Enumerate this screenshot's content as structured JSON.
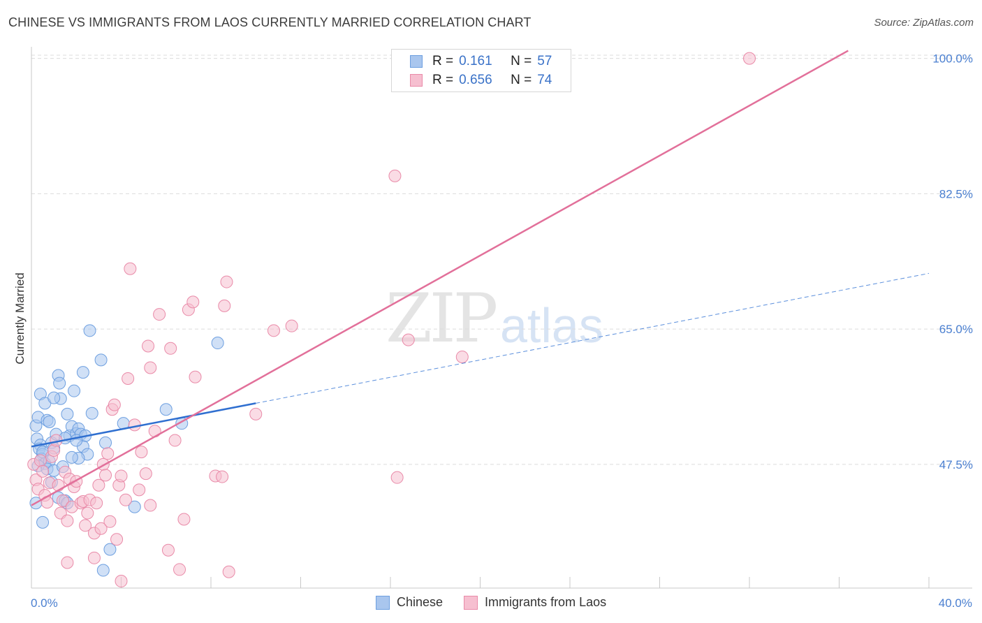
{
  "title": "CHINESE VS IMMIGRANTS FROM LAOS CURRENTLY MARRIED CORRELATION CHART",
  "source": "Source: ZipAtlas.com",
  "watermark": {
    "zip": "ZIP",
    "atlas": "atlas"
  },
  "legend": {
    "rows": [
      {
        "r_label": "R =",
        "r_value": "0.161",
        "n_label": "N =",
        "n_value": "57",
        "color": "#a9c6ee",
        "border": "#6d9fe0"
      },
      {
        "r_label": "R =",
        "r_value": "0.656",
        "n_label": "N =",
        "n_value": "74",
        "color": "#f6bfd0",
        "border": "#e98aa8"
      }
    ]
  },
  "bottom_legend": [
    {
      "label": "Chinese",
      "color": "#a9c6ee",
      "border": "#6d9fe0"
    },
    {
      "label": "Immigrants from Laos",
      "color": "#f6bfd0",
      "border": "#e98aa8"
    }
  ],
  "chart_data": {
    "type": "scatter",
    "title": "CHINESE VS IMMIGRANTS FROM LAOS CURRENTLY MARRIED CORRELATION CHART",
    "xlabel": "",
    "ylabel": "Currently Married",
    "xlim": [
      0,
      40
    ],
    "ylim": [
      31.5,
      101.5
    ],
    "x_tick_labels": [
      {
        "value": 0,
        "label": "0.0%"
      },
      {
        "value": 40,
        "label": "40.0%"
      }
    ],
    "y_tick_labels": [
      {
        "value": 47.5,
        "label": "47.5%"
      },
      {
        "value": 65.0,
        "label": "65.0%"
      },
      {
        "value": 82.5,
        "label": "82.5%"
      },
      {
        "value": 100.0,
        "label": "100.0%"
      }
    ],
    "x_minor_ticks": [
      0,
      4,
      8,
      12,
      16,
      20,
      24,
      28,
      32,
      36,
      40
    ],
    "series": [
      {
        "name": "Chinese",
        "color": "#a9c6ee",
        "stroke": "#6d9fe0",
        "points": [
          [
            0.2,
            52.5
          ],
          [
            0.3,
            53.6
          ],
          [
            0.25,
            50.8
          ],
          [
            0.4,
            50.0
          ],
          [
            0.35,
            49.5
          ],
          [
            0.5,
            48.8
          ],
          [
            0.45,
            48.2
          ],
          [
            0.6,
            47.6
          ],
          [
            0.3,
            47.3
          ],
          [
            0.5,
            49.1
          ],
          [
            0.4,
            56.6
          ],
          [
            0.6,
            55.4
          ],
          [
            0.7,
            53.2
          ],
          [
            0.8,
            53.0
          ],
          [
            0.9,
            50.3
          ],
          [
            1.0,
            49.6
          ],
          [
            0.8,
            47.9
          ],
          [
            0.7,
            46.9
          ],
          [
            1.0,
            46.7
          ],
          [
            1.1,
            51.4
          ],
          [
            1.2,
            59.0
          ],
          [
            1.25,
            58.0
          ],
          [
            1.3,
            56.0
          ],
          [
            1.0,
            56.1
          ],
          [
            1.6,
            54.0
          ],
          [
            1.7,
            51.2
          ],
          [
            1.8,
            52.4
          ],
          [
            1.9,
            57.0
          ],
          [
            2.0,
            51.5
          ],
          [
            2.1,
            52.1
          ],
          [
            2.2,
            51.4
          ],
          [
            2.4,
            51.2
          ],
          [
            2.3,
            49.8
          ],
          [
            2.5,
            48.8
          ],
          [
            2.1,
            48.3
          ],
          [
            1.4,
            47.2
          ],
          [
            1.2,
            43.2
          ],
          [
            1.5,
            42.8
          ],
          [
            1.6,
            42.5
          ],
          [
            2.3,
            59.4
          ],
          [
            2.6,
            64.8
          ],
          [
            2.7,
            54.1
          ],
          [
            3.1,
            61.0
          ],
          [
            3.3,
            50.3
          ],
          [
            4.1,
            52.8
          ],
          [
            4.6,
            42.0
          ],
          [
            3.5,
            36.5
          ],
          [
            3.2,
            33.8
          ],
          [
            6.0,
            54.6
          ],
          [
            6.7,
            52.8
          ],
          [
            8.3,
            63.2
          ],
          [
            0.2,
            42.5
          ],
          [
            0.5,
            40.0
          ],
          [
            0.9,
            45.2
          ],
          [
            1.8,
            48.4
          ],
          [
            2.0,
            50.6
          ],
          [
            1.5,
            50.9
          ]
        ],
        "trend": {
          "x": [
            0,
            10
          ],
          "y": [
            49.8,
            55.4
          ],
          "dashed_extension": {
            "x": [
              10,
              40
            ],
            "y": [
              55.4,
              72.2
            ]
          }
        }
      },
      {
        "name": "Immigrants from Laos",
        "color": "#f6bfd0",
        "stroke": "#e98aa8",
        "points": [
          [
            0.1,
            47.5
          ],
          [
            0.2,
            45.5
          ],
          [
            0.3,
            44.3
          ],
          [
            0.4,
            48.0
          ],
          [
            0.5,
            46.6
          ],
          [
            0.6,
            43.5
          ],
          [
            0.7,
            42.6
          ],
          [
            0.8,
            45.1
          ],
          [
            0.9,
            48.5
          ],
          [
            1.0,
            49.3
          ],
          [
            1.1,
            50.6
          ],
          [
            1.2,
            44.8
          ],
          [
            1.3,
            41.2
          ],
          [
            1.4,
            42.8
          ],
          [
            1.5,
            46.5
          ],
          [
            1.6,
            40.2
          ],
          [
            1.7,
            45.6
          ],
          [
            1.8,
            42.0
          ],
          [
            1.9,
            44.6
          ],
          [
            2.0,
            45.3
          ],
          [
            2.2,
            42.5
          ],
          [
            2.3,
            42.7
          ],
          [
            2.4,
            39.6
          ],
          [
            2.5,
            41.2
          ],
          [
            2.6,
            42.9
          ],
          [
            2.8,
            38.6
          ],
          [
            2.9,
            42.5
          ],
          [
            3.0,
            44.8
          ],
          [
            3.1,
            39.2
          ],
          [
            3.2,
            47.5
          ],
          [
            3.3,
            46.1
          ],
          [
            3.4,
            48.9
          ],
          [
            3.5,
            40.1
          ],
          [
            3.6,
            54.6
          ],
          [
            3.7,
            55.2
          ],
          [
            3.8,
            37.8
          ],
          [
            3.9,
            44.8
          ],
          [
            4.0,
            46.0
          ],
          [
            4.2,
            42.9
          ],
          [
            4.3,
            58.6
          ],
          [
            4.4,
            72.8
          ],
          [
            4.6,
            52.6
          ],
          [
            4.8,
            44.2
          ],
          [
            4.9,
            49.1
          ],
          [
            5.1,
            46.3
          ],
          [
            5.2,
            62.8
          ],
          [
            5.3,
            60.0
          ],
          [
            5.3,
            42.2
          ],
          [
            5.5,
            51.8
          ],
          [
            5.7,
            66.9
          ],
          [
            6.1,
            36.4
          ],
          [
            6.2,
            62.5
          ],
          [
            6.4,
            50.6
          ],
          [
            6.6,
            33.9
          ],
          [
            6.8,
            40.4
          ],
          [
            7.0,
            67.5
          ],
          [
            7.2,
            68.5
          ],
          [
            7.3,
            58.8
          ],
          [
            8.2,
            46.0
          ],
          [
            8.5,
            45.9
          ],
          [
            8.6,
            68.0
          ],
          [
            8.7,
            71.1
          ],
          [
            8.8,
            33.6
          ],
          [
            10.0,
            54.0
          ],
          [
            10.8,
            64.8
          ],
          [
            11.6,
            65.4
          ],
          [
            16.2,
            84.8
          ],
          [
            16.8,
            63.6
          ],
          [
            19.2,
            61.4
          ],
          [
            16.3,
            45.8
          ],
          [
            32.0,
            100.0
          ],
          [
            1.6,
            34.8
          ],
          [
            2.8,
            35.4
          ],
          [
            4.0,
            32.4
          ]
        ],
        "trend": {
          "x": [
            0,
            36.4
          ],
          "y": [
            42.2,
            101.0
          ]
        }
      }
    ]
  }
}
